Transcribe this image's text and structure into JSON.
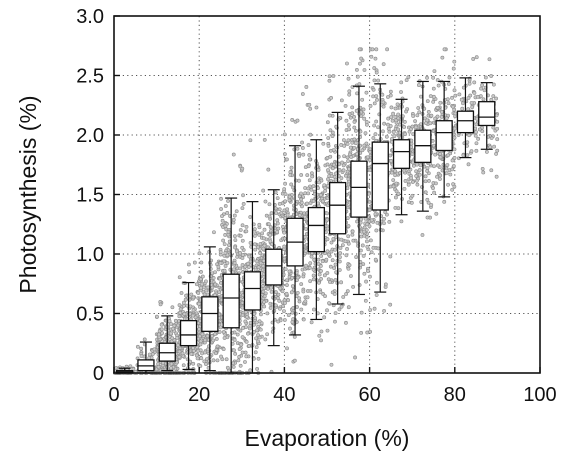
{
  "chart_data": {
    "type": "box",
    "xlabel": "Evaporation (%)",
    "ylabel": "Photosynthesis (%)",
    "xlim": [
      0,
      100
    ],
    "ylim": [
      0,
      3.0
    ],
    "x_ticks": [
      0,
      20,
      40,
      60,
      80,
      100
    ],
    "y_ticks": [
      0,
      0.5,
      1.0,
      1.5,
      2.0,
      2.5,
      3.0
    ],
    "x_tick_labels": [
      "0",
      "20",
      "40",
      "60",
      "80",
      "100"
    ],
    "y_tick_labels": [
      "0",
      "0.5",
      "1.0",
      "1.5",
      "2.0",
      "2.5",
      "3.0"
    ],
    "grid": "dotted, both axes",
    "colors": {
      "box_fill": "#ffffff",
      "box_stroke": "#111111",
      "scatter_fill": "#c8c8c8",
      "scatter_stroke": "#8a8a8a",
      "grid": "#555555"
    },
    "boxes": [
      {
        "x": 2.5,
        "whisker_low": 0.0,
        "q1": 0.0,
        "median": 0.01,
        "q3": 0.02,
        "whisker_high": 0.04
      },
      {
        "x": 7.5,
        "whisker_low": 0.0,
        "q1": 0.02,
        "median": 0.06,
        "q3": 0.11,
        "whisker_high": 0.26
      },
      {
        "x": 12.5,
        "whisker_low": 0.02,
        "q1": 0.1,
        "median": 0.17,
        "q3": 0.25,
        "whisker_high": 0.48
      },
      {
        "x": 17.5,
        "whisker_low": 0.03,
        "q1": 0.23,
        "median": 0.32,
        "q3": 0.44,
        "whisker_high": 0.76
      },
      {
        "x": 22.5,
        "whisker_low": 0.02,
        "q1": 0.35,
        "median": 0.5,
        "q3": 0.64,
        "whisker_high": 1.06
      },
      {
        "x": 27.5,
        "whisker_low": 0.0,
        "q1": 0.38,
        "median": 0.63,
        "q3": 0.83,
        "whisker_high": 1.47
      },
      {
        "x": 32.5,
        "whisker_low": 0.0,
        "q1": 0.53,
        "median": 0.71,
        "q3": 0.85,
        "whisker_high": 1.44
      },
      {
        "x": 37.5,
        "whisker_low": 0.23,
        "q1": 0.74,
        "median": 0.9,
        "q3": 1.04,
        "whisker_high": 1.54
      },
      {
        "x": 42.5,
        "whisker_low": 0.32,
        "q1": 0.9,
        "median": 1.1,
        "q3": 1.3,
        "whisker_high": 1.91
      },
      {
        "x": 47.5,
        "whisker_low": 0.45,
        "q1": 1.02,
        "median": 1.24,
        "q3": 1.39,
        "whisker_high": 1.96
      },
      {
        "x": 52.5,
        "whisker_low": 0.58,
        "q1": 1.17,
        "median": 1.41,
        "q3": 1.6,
        "whisker_high": 2.19
      },
      {
        "x": 57.5,
        "whisker_low": 0.66,
        "q1": 1.31,
        "median": 1.56,
        "q3": 1.78,
        "whisker_high": 2.41
      },
      {
        "x": 62.5,
        "whisker_low": 0.68,
        "q1": 1.37,
        "median": 1.76,
        "q3": 1.94,
        "whisker_high": 2.43
      },
      {
        "x": 67.5,
        "whisker_low": 1.33,
        "q1": 1.72,
        "median": 1.86,
        "q3": 1.96,
        "whisker_high": 2.3
      },
      {
        "x": 72.5,
        "whisker_low": 1.36,
        "q1": 1.77,
        "median": 1.91,
        "q3": 2.04,
        "whisker_high": 2.45
      },
      {
        "x": 77.5,
        "whisker_low": 1.48,
        "q1": 1.87,
        "median": 2.02,
        "q3": 2.12,
        "whisker_high": 2.45
      },
      {
        "x": 82.5,
        "whisker_low": 1.81,
        "q1": 2.02,
        "median": 2.12,
        "q3": 2.2,
        "whisker_high": 2.48
      },
      {
        "x": 87.5,
        "whisker_low": 1.88,
        "q1": 2.08,
        "median": 2.15,
        "q3": 2.28,
        "whisker_high": 2.44
      }
    ],
    "scatter": {
      "description_of_values": "dense cloud of individual observations around the boxes",
      "x_range": [
        0,
        92
      ],
      "y_range": [
        0,
        2.72
      ]
    }
  }
}
